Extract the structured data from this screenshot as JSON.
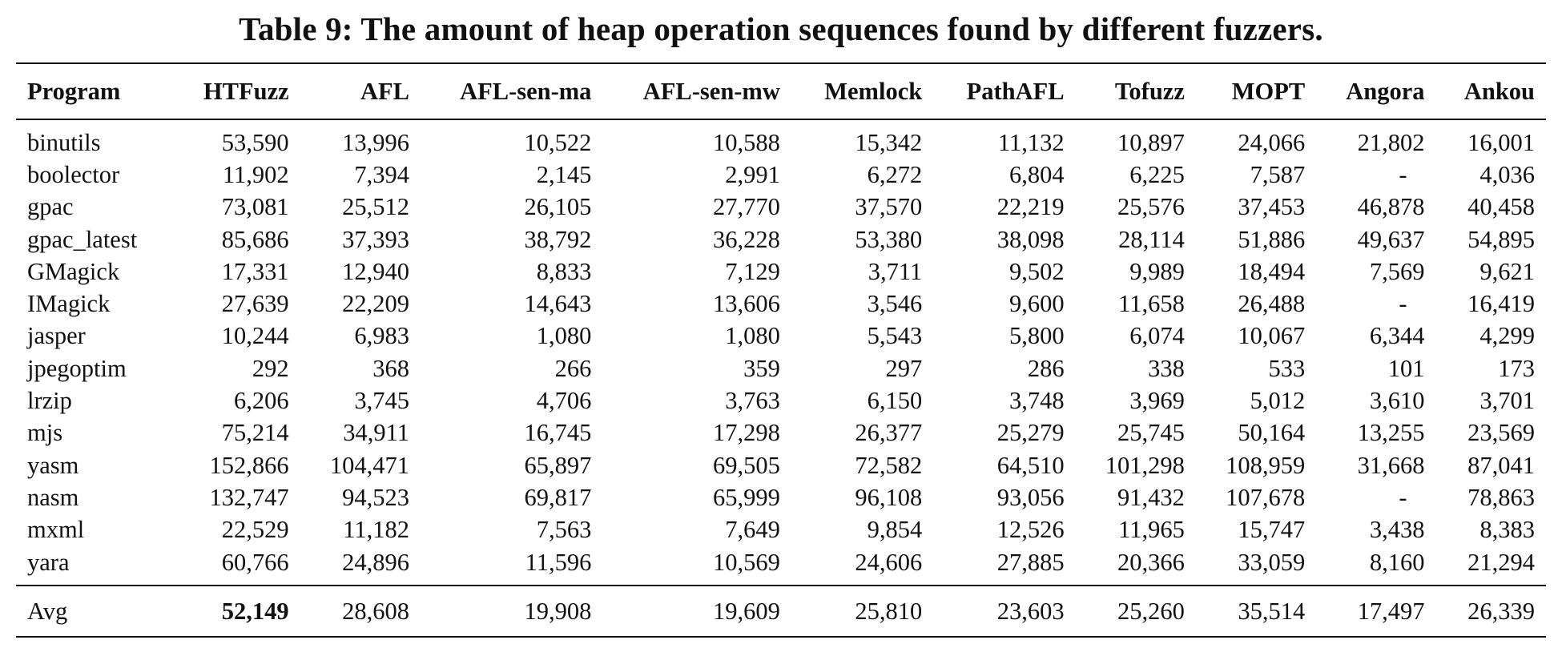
{
  "caption": "Table 9: The amount of heap operation sequences found by different fuzzers.",
  "table": {
    "headers": [
      "Program",
      "HTFuzz",
      "AFL",
      "AFL-sen-ma",
      "AFL-sen-mw",
      "Memlock",
      "PathAFL",
      "Tofuzz",
      "MOPT",
      "Angora",
      "Ankou"
    ],
    "rows": [
      [
        "binutils",
        "53,590",
        "13,996",
        "10,522",
        "10,588",
        "15,342",
        "11,132",
        "10,897",
        "24,066",
        "21,802",
        "16,001"
      ],
      [
        "boolector",
        "11,902",
        "7,394",
        "2,145",
        "2,991",
        "6,272",
        "6,804",
        "6,225",
        "7,587",
        "-",
        "4,036"
      ],
      [
        "gpac",
        "73,081",
        "25,512",
        "26,105",
        "27,770",
        "37,570",
        "22,219",
        "25,576",
        "37,453",
        "46,878",
        "40,458"
      ],
      [
        "gpac_latest",
        "85,686",
        "37,393",
        "38,792",
        "36,228",
        "53,380",
        "38,098",
        "28,114",
        "51,886",
        "49,637",
        "54,895"
      ],
      [
        "GMagick",
        "17,331",
        "12,940",
        "8,833",
        "7,129",
        "3,711",
        "9,502",
        "9,989",
        "18,494",
        "7,569",
        "9,621"
      ],
      [
        "IMagick",
        "27,639",
        "22,209",
        "14,643",
        "13,606",
        "3,546",
        "9,600",
        "11,658",
        "26,488",
        "-",
        "16,419"
      ],
      [
        "jasper",
        "10,244",
        "6,983",
        "1,080",
        "1,080",
        "5,543",
        "5,800",
        "6,074",
        "10,067",
        "6,344",
        "4,299"
      ],
      [
        "jpegoptim",
        "292",
        "368",
        "266",
        "359",
        "297",
        "286",
        "338",
        "533",
        "101",
        "173"
      ],
      [
        "lrzip",
        "6,206",
        "3,745",
        "4,706",
        "3,763",
        "6,150",
        "3,748",
        "3,969",
        "5,012",
        "3,610",
        "3,701"
      ],
      [
        "mjs",
        "75,214",
        "34,911",
        "16,745",
        "17,298",
        "26,377",
        "25,279",
        "25,745",
        "50,164",
        "13,255",
        "23,569"
      ],
      [
        "yasm",
        "152,866",
        "104,471",
        "65,897",
        "69,505",
        "72,582",
        "64,510",
        "101,298",
        "108,959",
        "31,668",
        "87,041"
      ],
      [
        "nasm",
        "132,747",
        "94,523",
        "69,817",
        "65,999",
        "96,108",
        "93,056",
        "91,432",
        "107,678",
        "-",
        "78,863"
      ],
      [
        "mxml",
        "22,529",
        "11,182",
        "7,563",
        "7,649",
        "9,854",
        "12,526",
        "11,965",
        "15,747",
        "3,438",
        "8,383"
      ],
      [
        "yara",
        "60,766",
        "24,896",
        "11,596",
        "10,569",
        "24,606",
        "27,885",
        "20,366",
        "33,059",
        "8,160",
        "21,294"
      ]
    ],
    "footer": [
      "Avg",
      "52,149",
      "28,608",
      "19,908",
      "19,609",
      "25,810",
      "23,603",
      "25,260",
      "35,514",
      "17,497",
      "26,339"
    ],
    "footer_bold_index": 1
  }
}
